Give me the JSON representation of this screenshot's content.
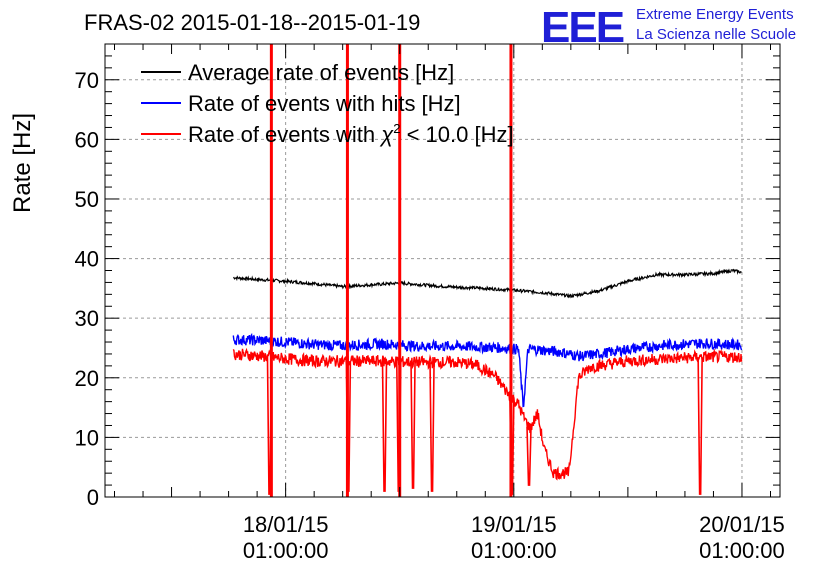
{
  "chart_data": {
    "type": "line",
    "title": "FRAS-02 2015-01-18--2015-01-19",
    "ylabel": "Rate [Hz]",
    "xlabel": "",
    "ylim": [
      0,
      76
    ],
    "xlim_hours": [
      -19,
      52
    ],
    "yticks": [
      0,
      10,
      20,
      30,
      40,
      50,
      60,
      70
    ],
    "xticks": [
      {
        "hours": 0,
        "date": "18/01/15",
        "time": "01:00:00"
      },
      {
        "hours": 24,
        "date": "19/01/15",
        "time": "01:00:00"
      },
      {
        "hours": 48,
        "date": "20/01/15",
        "time": "01:00:00"
      }
    ],
    "grid": true,
    "legend_position": "top-left",
    "series": [
      {
        "name": "Average rate of events [Hz]",
        "color": "#000000",
        "x": [
          -5.5,
          -3,
          0,
          3,
          6,
          10,
          12,
          16,
          18,
          21,
          24,
          27,
          30,
          33,
          36,
          39,
          42,
          45,
          47,
          48
        ],
        "y": [
          36.8,
          36.5,
          36.2,
          35.8,
          35.3,
          35.7,
          35.9,
          35.4,
          35.2,
          35.0,
          34.7,
          34.3,
          33.7,
          34.6,
          36.2,
          37.3,
          37.3,
          37.5,
          38.0,
          37.7
        ]
      },
      {
        "name": "Rate of events with hits [Hz]",
        "color": "#0000ff",
        "x": [
          -5.5,
          -3,
          0,
          3,
          6,
          10,
          14,
          18,
          22,
          24.5,
          25,
          25.5,
          26,
          29,
          31,
          33,
          36,
          40,
          44,
          48
        ],
        "y": [
          26.4,
          26.3,
          26.0,
          25.6,
          25.4,
          25.7,
          25.3,
          25.3,
          25.1,
          24.8,
          15.0,
          24.8,
          24.8,
          24.3,
          23.6,
          24.0,
          24.8,
          25.5,
          25.8,
          25.5
        ]
      },
      {
        "name": "Rate of events with χ² < 10.0 [Hz]",
        "color": "#ff0000",
        "x": [
          -5.5,
          -3,
          0,
          3,
          6,
          10,
          14,
          18,
          20,
          22,
          23.5,
          24.5,
          25,
          25.7,
          26.5,
          27.2,
          28.2,
          29.8,
          30.8,
          32,
          36,
          40,
          44,
          48
        ],
        "y": [
          24.0,
          23.7,
          23.2,
          22.8,
          22.8,
          22.8,
          22.6,
          22.6,
          22.2,
          20.3,
          17.2,
          15.5,
          13.5,
          11.5,
          14.0,
          8.0,
          4.0,
          4.0,
          20.0,
          21.8,
          22.8,
          23.2,
          23.5,
          23.5
        ]
      }
    ],
    "spikes_hours": [
      -1.5,
      6.5,
      12,
      23.7
    ],
    "dips": [
      {
        "hours": -1.7,
        "min": 0.5
      },
      {
        "hours": 6.6,
        "min": 1.0
      },
      {
        "hours": 10.4,
        "min": 1.0
      },
      {
        "hours": 11.9,
        "min": 1.0
      },
      {
        "hours": 13.4,
        "min": 1.5
      },
      {
        "hours": 15.4,
        "min": 1.0
      },
      {
        "hours": 23.8,
        "min": 0.5
      },
      {
        "hours": 25.6,
        "min": 2.0
      },
      {
        "hours": 43.6,
        "min": 0.5
      }
    ]
  },
  "logo": {
    "big": "EEE",
    "line1": "Extreme Energy Events",
    "line2": "La Scienza nelle Scuole"
  },
  "legend": [
    {
      "label": "Average rate of events [Hz]",
      "color": "#000000"
    },
    {
      "label": "Rate of events with hits [Hz]",
      "color": "#0000ff"
    },
    {
      "label_pre": "Rate of events with ",
      "label_sym": "χ",
      "label_sup": "2",
      "label_post": " < 10.0 [Hz]",
      "color": "#ff0000"
    }
  ]
}
